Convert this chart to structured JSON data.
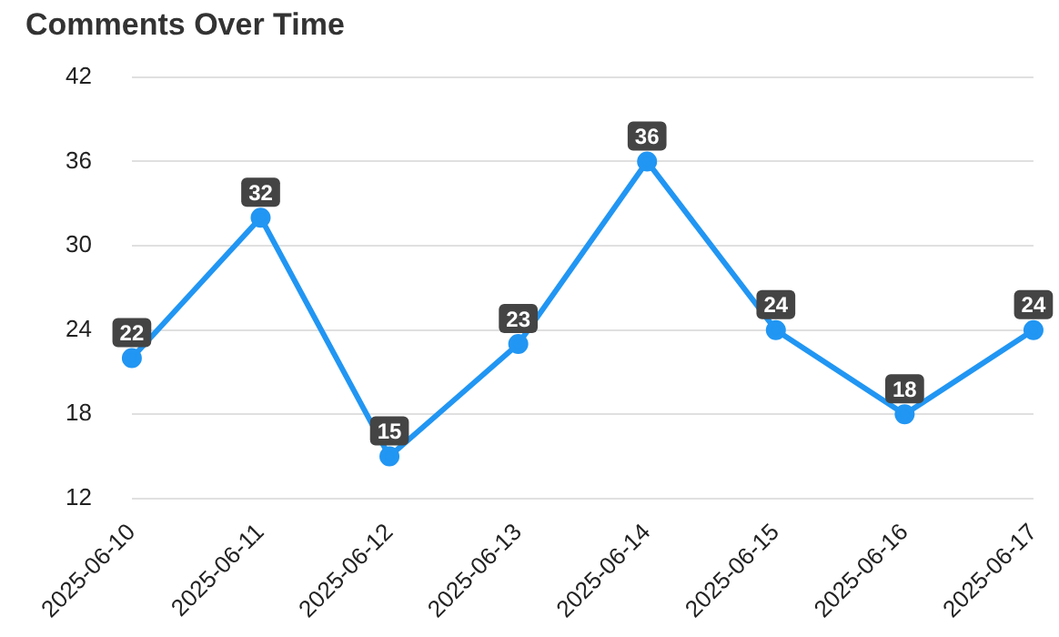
{
  "chart_data": {
    "type": "line",
    "title": "Comments Over Time",
    "categories": [
      "2025-06-10",
      "2025-06-11",
      "2025-06-12",
      "2025-06-13",
      "2025-06-14",
      "2025-06-15",
      "2025-06-16",
      "2025-06-17"
    ],
    "series": [
      {
        "color": "#2196f3",
        "values": [
          22,
          32,
          15,
          23,
          36,
          24,
          18,
          24
        ]
      }
    ],
    "ylim": [
      12,
      42
    ],
    "yticks": [
      12,
      18,
      24,
      30,
      36,
      42
    ],
    "grid": "y",
    "legend": false,
    "marker": "circle",
    "line_style": "solid",
    "data_labels": true
  }
}
